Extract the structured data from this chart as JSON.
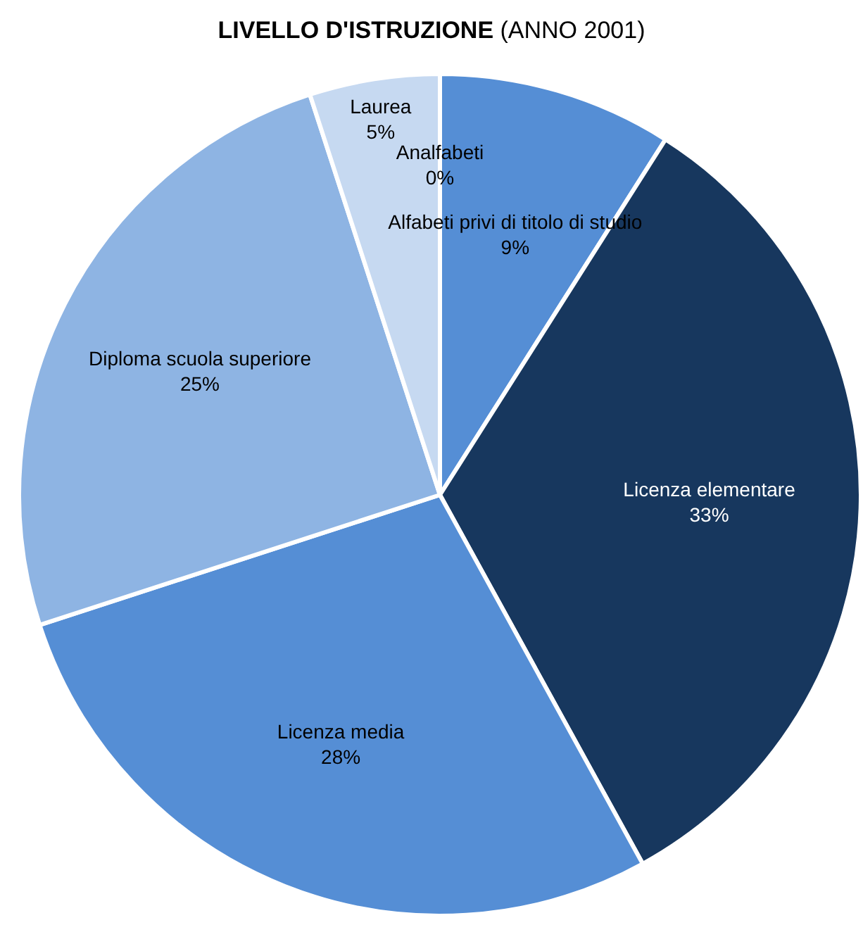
{
  "chart_data": {
    "type": "pie",
    "title": "LIVELLO D'ISTRUZIONE (ANNO 2001)",
    "categories": [
      "Analfabeti",
      "Alfabeti privi di titolo di studio",
      "Licenza elementare",
      "Licenza media",
      "Diploma scuola superiore",
      "Laurea"
    ],
    "values": [
      0,
      9,
      33,
      28,
      25,
      5
    ],
    "value_labels": [
      "0%",
      "9%",
      "33%",
      "28%",
      "25%",
      "5%"
    ],
    "colors": [
      "#558ed5",
      "#558ed5",
      "#17375e",
      "#558ed5",
      "#8eb4e3",
      "#c6d9f1"
    ],
    "legend": false
  }
}
